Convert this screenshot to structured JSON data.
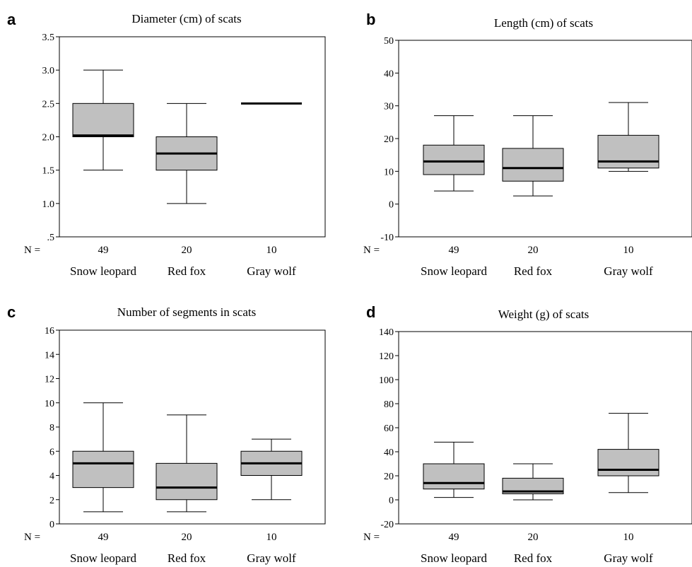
{
  "figure": {
    "n_label": "N =",
    "colors": {
      "box_fill": "#c0c0c0",
      "stroke": "#000000"
    }
  },
  "chart_data": [
    {
      "panel": "a",
      "type": "box",
      "title": "Diameter (cm) of scats",
      "xlabel": "",
      "ylabel": "",
      "ylim": [
        0.5,
        3.5
      ],
      "yticks": [
        0.5,
        1.0,
        1.5,
        2.0,
        2.5,
        3.0,
        3.5
      ],
      "ytick_labels": [
        ".5",
        "1.0",
        "1.5",
        "2.0",
        "2.5",
        "3.0",
        "3.5"
      ],
      "categories": [
        "Snow leopard",
        "Red fox",
        "Gray wolf"
      ],
      "n": [
        "49",
        "20",
        "10"
      ],
      "boxes": [
        {
          "min": 1.5,
          "q1": 2.0,
          "median": 2.02,
          "q3": 2.5,
          "max": 3.0
        },
        {
          "min": 1.0,
          "q1": 1.5,
          "median": 1.75,
          "q3": 2.0,
          "max": 2.5
        },
        {
          "min": 2.5,
          "q1": 2.5,
          "median": 2.5,
          "q3": 2.5,
          "max": 2.5
        }
      ]
    },
    {
      "panel": "b",
      "type": "box",
      "title": "Length (cm) of scats",
      "xlabel": "",
      "ylabel": "",
      "ylim": [
        -10,
        50
      ],
      "yticks": [
        -10,
        0,
        10,
        20,
        30,
        40,
        50
      ],
      "ytick_labels": [
        "-10",
        "0",
        "10",
        "20",
        "30",
        "40",
        "50"
      ],
      "categories": [
        "Snow leopard",
        "Red fox",
        "Gray wolf"
      ],
      "n": [
        "49",
        "20",
        "10"
      ],
      "boxes": [
        {
          "min": 4,
          "q1": 9,
          "median": 13,
          "q3": 18,
          "max": 27
        },
        {
          "min": 2.5,
          "q1": 7,
          "median": 11,
          "q3": 17,
          "max": 27
        },
        {
          "min": 10,
          "q1": 11,
          "median": 13,
          "q3": 21,
          "max": 31
        }
      ]
    },
    {
      "panel": "c",
      "type": "box",
      "title": "Number of segments in scats",
      "xlabel": "",
      "ylabel": "",
      "ylim": [
        0,
        16
      ],
      "yticks": [
        0,
        2,
        4,
        6,
        8,
        10,
        12,
        14,
        16
      ],
      "ytick_labels": [
        "0",
        "2",
        "4",
        "6",
        "8",
        "10",
        "12",
        "14",
        "16"
      ],
      "categories": [
        "Snow leopard",
        "Red fox",
        "Gray wolf"
      ],
      "n": [
        "49",
        "20",
        "10"
      ],
      "boxes": [
        {
          "min": 1,
          "q1": 3,
          "median": 5,
          "q3": 6,
          "max": 10
        },
        {
          "min": 1,
          "q1": 2,
          "median": 3,
          "q3": 5,
          "max": 9
        },
        {
          "min": 2,
          "q1": 4,
          "median": 5,
          "q3": 6,
          "max": 7
        }
      ]
    },
    {
      "panel": "d",
      "type": "box",
      "title": "Weight (g) of scats",
      "xlabel": "",
      "ylabel": "",
      "ylim": [
        -20,
        140
      ],
      "yticks": [
        -20,
        0,
        20,
        40,
        60,
        80,
        100,
        120,
        140
      ],
      "ytick_labels": [
        "-20",
        "0",
        "20",
        "40",
        "60",
        "80",
        "100",
        "120",
        "140"
      ],
      "categories": [
        "Snow leopard",
        "Red fox",
        "Gray wolf"
      ],
      "n": [
        "49",
        "20",
        "10"
      ],
      "boxes": [
        {
          "min": 2,
          "q1": 9,
          "median": 14,
          "q3": 30,
          "max": 48
        },
        {
          "min": 0,
          "q1": 5,
          "median": 7,
          "q3": 18,
          "max": 30
        },
        {
          "min": 6,
          "q1": 20,
          "median": 25,
          "q3": 42,
          "max": 72
        }
      ]
    }
  ]
}
